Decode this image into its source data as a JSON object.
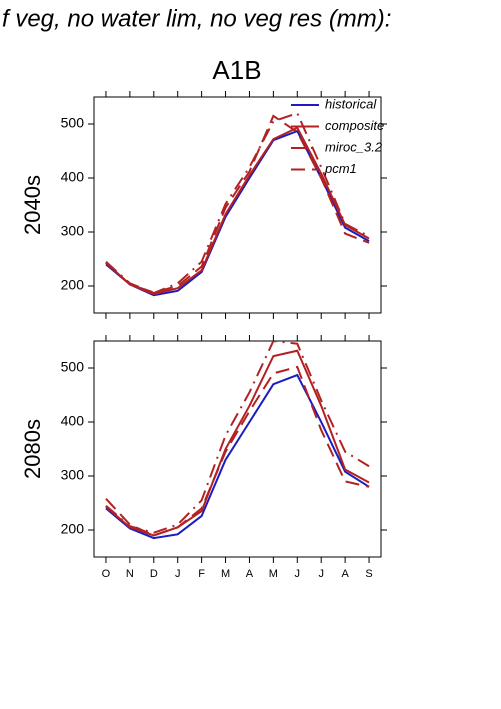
{
  "title": "f veg, no water lim, no veg res (mm):",
  "subtitle": "A1B",
  "chart_data": [
    {
      "type": "line",
      "ylabel": "2040s",
      "categories": [
        null,
        null,
        null,
        null,
        null,
        null,
        null,
        null,
        null,
        null,
        null,
        null
      ],
      "ylim": [
        150,
        550
      ],
      "yticks": [
        200,
        300,
        400,
        500
      ],
      "legend": "upper right",
      "series": [
        {
          "name": "historical",
          "color": "#1c1cc0",
          "dash": "solid",
          "values": [
            240,
            203,
            183,
            191,
            226,
            328,
            400,
            470,
            487,
            400,
            308,
            283
          ]
        },
        {
          "name": "composite",
          "color": "#b22222",
          "dash": "solid",
          "values": [
            243,
            203,
            185,
            196,
            229,
            333,
            405,
            472,
            493,
            408,
            313,
            288
          ]
        },
        {
          "name": "miroc_3.2",
          "color": "#b22222",
          "dash": "dashdot",
          "values": [
            245,
            205,
            187,
            205,
            245,
            352,
            420,
            505,
            520,
            420,
            315,
            292
          ]
        },
        {
          "name": "pcm1",
          "color": "#b22222",
          "dash": "dashed",
          "values": [
            243,
            203,
            188,
            200,
            236,
            345,
            412,
            515,
            485,
            400,
            297,
            280
          ]
        }
      ]
    },
    {
      "type": "line",
      "ylabel": "2080s",
      "categories": [
        "O",
        "N",
        "D",
        "J",
        "F",
        "M",
        "A",
        "M",
        "J",
        "J",
        "A",
        "S"
      ],
      "ylim": [
        150,
        550
      ],
      "yticks": [
        200,
        300,
        400,
        500
      ],
      "series": [
        {
          "color": "#1c1cc0",
          "dash": "solid",
          "values": [
            240,
            203,
            185,
            192,
            226,
            330,
            400,
            470,
            487,
            400,
            308,
            280
          ]
        },
        {
          "color": "#b22222",
          "dash": "solid",
          "values": [
            243,
            205,
            190,
            205,
            235,
            350,
            430,
            522,
            532,
            430,
            312,
            288
          ]
        },
        {
          "color": "#b22222",
          "dash": "dashdot",
          "values": [
            245,
            207,
            195,
            210,
            255,
            375,
            455,
            550,
            545,
            440,
            345,
            318
          ]
        },
        {
          "color": "#b22222",
          "dash": "dashed",
          "values": [
            258,
            210,
            190,
            205,
            240,
            345,
            420,
            490,
            502,
            385,
            290,
            280
          ]
        }
      ]
    }
  ]
}
